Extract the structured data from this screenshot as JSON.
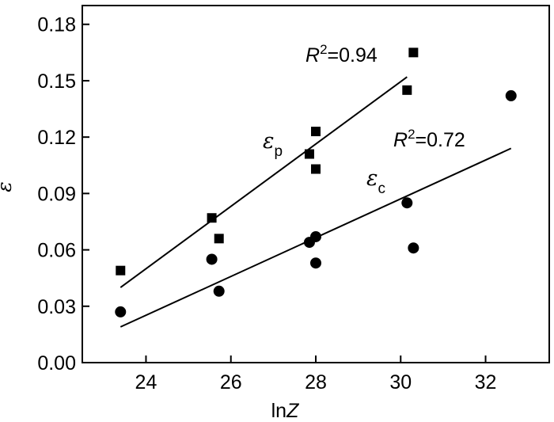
{
  "chart_data": {
    "type": "scatter",
    "xlabel": {
      "prefix": "ln",
      "var": "Z"
    },
    "ylabel": "ε",
    "xlim": [
      22.5,
      33.5
    ],
    "ylim": [
      0,
      0.19
    ],
    "xticks": [
      24,
      26,
      28,
      30,
      32
    ],
    "yticks": [
      0.0,
      0.03,
      0.06,
      0.09,
      0.12,
      0.15,
      0.18
    ],
    "xtick_labels": [
      "24",
      "26",
      "28",
      "30",
      "32"
    ],
    "ytick_labels": [
      "0.00",
      "0.03",
      "0.06",
      "0.09",
      "0.12",
      "0.15",
      "0.18"
    ],
    "grid": false,
    "series": [
      {
        "label_symbol": "ε",
        "label_sub": "p",
        "marker": "square",
        "x": [
          23.4,
          25.55,
          25.72,
          27.85,
          28.0,
          28.0,
          30.15,
          30.3
        ],
        "y": [
          0.049,
          0.077,
          0.066,
          0.111,
          0.123,
          0.103,
          0.145,
          0.165
        ],
        "fit": {
          "x": [
            23.4,
            30.15
          ],
          "y": [
            0.04,
            0.152
          ]
        },
        "r2_var": "R",
        "r2_sup": "2",
        "r2_text": "=0.94"
      },
      {
        "label_symbol": "ε",
        "label_sub": "c",
        "marker": "circle",
        "x": [
          23.4,
          25.55,
          25.72,
          27.85,
          28.0,
          28.0,
          30.15,
          30.3,
          32.6
        ],
        "y": [
          0.027,
          0.055,
          0.038,
          0.064,
          0.067,
          0.053,
          0.085,
          0.061,
          0.142
        ],
        "fit": {
          "x": [
            23.4,
            32.6
          ],
          "y": [
            0.019,
            0.114
          ]
        },
        "r2_var": "R",
        "r2_sup": "2",
        "r2_text": "=0.72"
      }
    ]
  }
}
